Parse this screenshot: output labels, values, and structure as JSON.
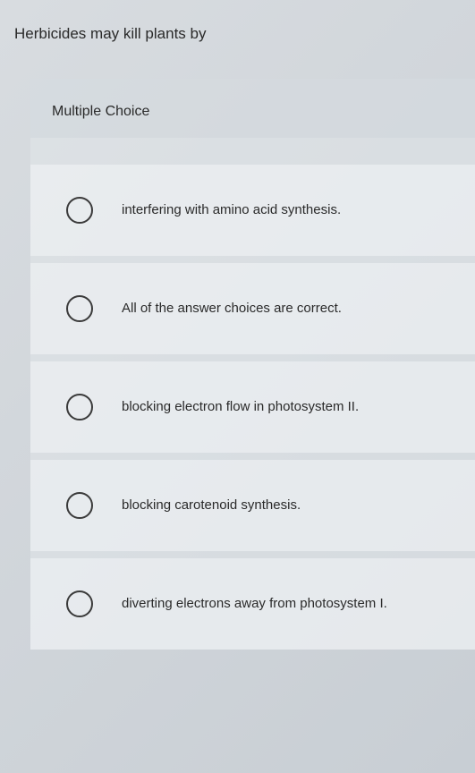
{
  "question": {
    "text": "Herbicides may kill plants by"
  },
  "section": {
    "title": "Multiple Choice"
  },
  "options": [
    {
      "label": "interfering with amino acid synthesis."
    },
    {
      "label": "All of the answer choices are correct."
    },
    {
      "label": "blocking electron flow in photosystem II."
    },
    {
      "label": "blocking carotenoid synthesis."
    },
    {
      "label": "diverting electrons away from photosystem I."
    }
  ],
  "colors": {
    "background_start": "#d8dce0",
    "background_end": "#c8ced4",
    "text_primary": "#2a2a2a",
    "radio_border": "#3a3a3a",
    "option_bg": "rgba(245, 247, 249, 0.5)"
  },
  "typography": {
    "question_fontsize": 17,
    "section_fontsize": 16,
    "option_fontsize": 15
  }
}
